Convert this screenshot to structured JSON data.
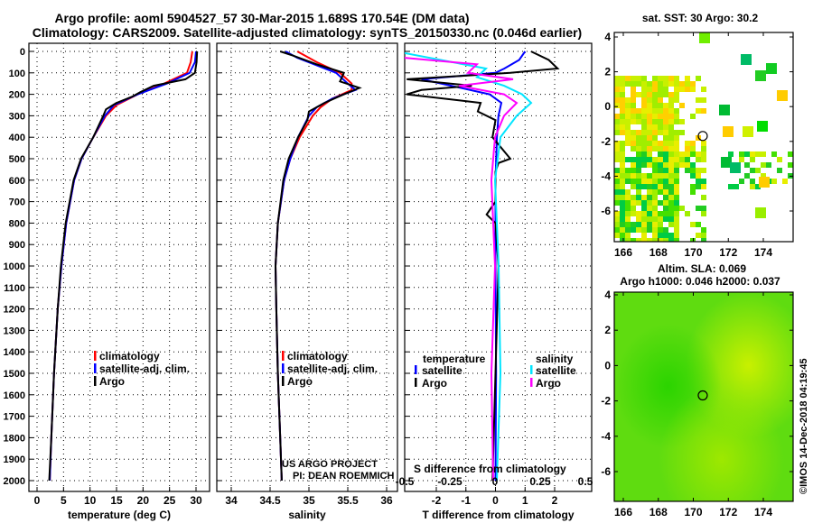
{
  "title_line1": "Argo profile: aoml 5904527_57 30-Mar-2015 1.689S 170.54E (DM data)",
  "title_line2": "Climatology: CARS2009. Satellite-adjusted climatology: synTS_20150330.nc (0.046d earlier)",
  "colors": {
    "climatology": "#ff0000",
    "satellite": "#0000ff",
    "argo": "#000000",
    "sal_satellite": "#00e5ff",
    "sal_argo": "#ff00ff"
  },
  "chart_data": [
    {
      "type": "line",
      "name": "temperature",
      "xlabel": "temperature (deg C)",
      "ylabel": "",
      "xlim": [
        -2,
        32
      ],
      "ylim": [
        2100,
        0
      ],
      "xticks": [
        0,
        5,
        10,
        15,
        20,
        25,
        30
      ],
      "yticks": [
        0,
        100,
        200,
        300,
        400,
        500,
        600,
        700,
        800,
        900,
        1000,
        1100,
        1200,
        1300,
        1400,
        1500,
        1600,
        1700,
        1800,
        1900,
        2000
      ],
      "legend": [
        "climatology",
        "satellite-adj. clim.",
        "Argo"
      ],
      "legend_position": "bottom-right",
      "annotation": "",
      "series": [
        {
          "name": "climatology",
          "color": "#ff0000",
          "depth": [
            0,
            50,
            100,
            150,
            200,
            250,
            300,
            400,
            500,
            600,
            800,
            1000,
            1200,
            1500,
            1800,
            2000
          ],
          "values": [
            29.3,
            29.0,
            28.3,
            24,
            19,
            15,
            13,
            10.6,
            8.4,
            7,
            5.5,
            4.6,
            3.9,
            3.2,
            2.7,
            2.4
          ]
        },
        {
          "name": "satellite-adj. clim.",
          "color": "#0000ff",
          "depth": [
            0,
            50,
            100,
            150,
            200,
            250,
            300,
            400,
            500,
            600,
            800,
            1000,
            1200,
            1500,
            1800,
            2000
          ],
          "values": [
            30,
            29.8,
            28.8,
            24.5,
            19,
            14.5,
            12.8,
            10.6,
            8.4,
            7,
            5.5,
            4.6,
            3.9,
            3.2,
            2.7,
            2.4
          ]
        },
        {
          "name": "Argo",
          "color": "#000000",
          "depth": [
            0,
            50,
            100,
            130,
            160,
            190,
            210,
            240,
            270,
            300,
            400,
            500,
            600,
            800,
            1000,
            1200,
            1500,
            1800,
            2000
          ],
          "values": [
            30.2,
            30.1,
            29.8,
            28,
            22,
            19.5,
            18,
            15,
            13,
            12.5,
            10.6,
            8.3,
            6.9,
            5.4,
            4.5,
            3.9,
            3.2,
            2.7,
            2.3
          ]
        }
      ]
    },
    {
      "type": "line",
      "name": "salinity",
      "xlabel": "salinity",
      "xlim": [
        33.9,
        36.2
      ],
      "ylim": [
        2100,
        0
      ],
      "xticks": [
        34,
        34.5,
        35,
        35.5,
        36
      ],
      "xticklabels": [
        "34",
        "34.5",
        "35",
        "35.5",
        "36"
      ],
      "legend": [
        "climatology",
        "satellite-adj. clim.",
        "Argo"
      ],
      "legend_position": "bottom-right",
      "annotation": [
        "US ARGO PROJECT",
        "PI: DEAN ROEMMICH"
      ],
      "series": [
        {
          "name": "climatology",
          "color": "#ff0000",
          "depth": [
            0,
            50,
            100,
            150,
            180,
            220,
            260,
            300,
            400,
            500,
            600,
            800,
            1000,
            1200,
            1500,
            1800,
            2000
          ],
          "values": [
            34.85,
            35.1,
            35.4,
            35.55,
            35.55,
            35.3,
            35.15,
            35.05,
            34.88,
            34.76,
            34.68,
            34.6,
            34.57,
            34.58,
            34.6,
            34.63,
            34.65
          ]
        },
        {
          "name": "satellite-adj. clim.",
          "color": "#0000ff",
          "depth": [
            0,
            30,
            100,
            150,
            180,
            220,
            260,
            300,
            400,
            500,
            600,
            800,
            1000,
            1200,
            1500,
            1800,
            2000
          ],
          "values": [
            34.7,
            34.85,
            35.35,
            35.5,
            35.6,
            35.3,
            35.1,
            35.0,
            34.86,
            34.76,
            34.68,
            34.6,
            34.57,
            34.58,
            34.6,
            34.63,
            34.65
          ]
        },
        {
          "name": "Argo",
          "color": "#000000",
          "depth": [
            0,
            20,
            60,
            100,
            140,
            170,
            200,
            240,
            280,
            320,
            400,
            500,
            600,
            800,
            1000,
            1200,
            1500,
            1800,
            2000
          ],
          "values": [
            34.63,
            34.8,
            35.1,
            35.45,
            35.4,
            35.65,
            35.45,
            35.2,
            35.0,
            34.98,
            34.86,
            34.74,
            34.67,
            34.6,
            34.57,
            34.58,
            34.6,
            34.63,
            34.65
          ]
        }
      ]
    },
    {
      "type": "line",
      "name": "difference",
      "xlabel": "T difference from climatology",
      "x2label": "S difference from climatology",
      "xlim": [
        -3,
        3.2
      ],
      "ylim": [
        2100,
        0
      ],
      "xticks": [
        -2,
        -1,
        0,
        1,
        2
      ],
      "x2ticks": [
        -0.5,
        -0.25,
        0,
        0.25,
        0.5
      ],
      "x2ticklabels": [
        "-0.5",
        "-0.25",
        "0",
        "0.25",
        "0.5"
      ],
      "legend_temperature": {
        "title": "temperature",
        "items": [
          "satellite",
          "Argo"
        ]
      },
      "legend_salinity": {
        "title": "salinity",
        "items": [
          "satellite",
          "Argo"
        ]
      },
      "series": [
        {
          "name": "T satellite",
          "color": "#0000ff",
          "depth": [
            0,
            40,
            80,
            100,
            130,
            160,
            200,
            240,
            300,
            400,
            600,
            1000,
            1500,
            2000
          ],
          "values": [
            1,
            0.8,
            0.3,
            0,
            -2.5,
            -1.5,
            -0.2,
            0.2,
            0.1,
            0.05,
            0,
            0,
            0.02,
            0
          ]
        },
        {
          "name": "T Argo",
          "color": "#000000",
          "depth": [
            0,
            40,
            80,
            100,
            130,
            160,
            180,
            200,
            240,
            280,
            320,
            400,
            500,
            520,
            560,
            700,
            760,
            800,
            1000,
            1500,
            2000
          ],
          "values": [
            1.2,
            1.8,
            2.1,
            0.5,
            -3,
            -0.8,
            -2.5,
            -3,
            -0.5,
            -0.6,
            0,
            -0.1,
            0.5,
            0.1,
            0,
            0,
            -0.3,
            0,
            0.1,
            0,
            -0.1
          ]
        },
        {
          "name": "S satellite",
          "color": "#00e5ff",
          "depth": [
            0,
            40,
            80,
            120,
            160,
            200,
            240,
            300,
            400,
            600,
            1000,
            1500,
            2000
          ],
          "values": [
            -0.55,
            -0.3,
            -0.05,
            -0.1,
            0.05,
            0.15,
            0.2,
            0.12,
            0.03,
            0,
            0.02,
            0.03,
            0.01
          ]
        },
        {
          "name": "S Argo",
          "color": "#ff00ff",
          "depth": [
            0,
            30,
            60,
            100,
            130,
            160,
            200,
            240,
            300,
            400,
            600,
            1000,
            1500,
            2000
          ],
          "values": [
            -0.6,
            -0.5,
            -0.1,
            -0.15,
            0.1,
            -0.2,
            0.05,
            0.12,
            0.05,
            0,
            -0.02,
            0,
            -0.02,
            -0.01
          ]
        }
      ]
    },
    {
      "type": "heatmap",
      "name": "sst-map",
      "title": "sat. SST: 30 Argo: 30.2",
      "xticks": [
        166,
        168,
        170,
        172,
        174
      ],
      "yticks": [
        4,
        2,
        0,
        -2,
        -4,
        -6
      ],
      "xlim": [
        165.5,
        175.7
      ],
      "ylim": [
        -7.7,
        4.2
      ],
      "marker": {
        "lon": 170.54,
        "lat": -1.689
      }
    },
    {
      "type": "heatmap",
      "name": "sla-map",
      "title_line1": "Altim. SLA: 0.069",
      "title_line2": "Argo h1000: 0.046 h2000: 0.037",
      "xticks": [
        166,
        168,
        170,
        172,
        174
      ],
      "yticks": [
        4,
        2,
        0,
        -2,
        -4,
        -6
      ],
      "xlim": [
        165.5,
        175.7
      ],
      "ylim": [
        -7.7,
        4.2
      ],
      "marker": {
        "lon": 170.54,
        "lat": -1.689
      }
    }
  ],
  "credit": "©IMOS 14-Dec-2018 04:19:45"
}
